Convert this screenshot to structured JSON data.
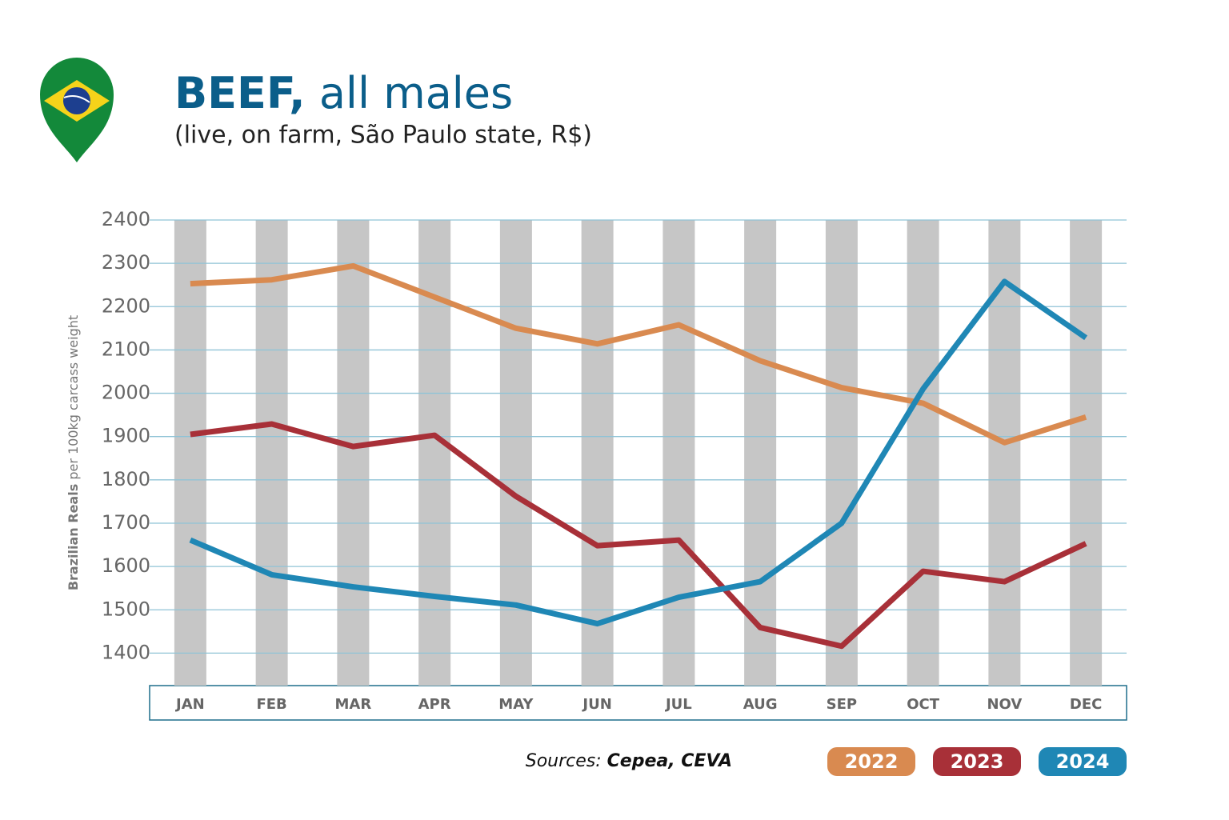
{
  "chart_data": {
    "type": "line",
    "title_emphasis": "BEEF,",
    "title": "all males",
    "subtitle": "(live, on farm, São Paulo state, R$)",
    "ylabel_emphasis": "Brazilian Reals",
    "ylabel": "per 100kg carcass weight",
    "source_label": "Sources:",
    "source": "Cepea, CEVA",
    "categories": [
      "JAN",
      "FEB",
      "MAR",
      "APR",
      "MAY",
      "JUN",
      "JUL",
      "AUG",
      "SEP",
      "OCT",
      "NOV",
      "DEC"
    ],
    "series": [
      {
        "name": "2022",
        "color": "#d98a50",
        "values": [
          2253,
          2262,
          2294,
          2222,
          2150,
          2114,
          2158,
          2075,
          2013,
          1977,
          1886,
          1945
        ]
      },
      {
        "name": "2023",
        "color": "#a83038",
        "values": [
          1905,
          1929,
          1877,
          1903,
          1762,
          1648,
          1661,
          1459,
          1416,
          1589,
          1565,
          1653
        ]
      },
      {
        "name": "2024",
        "color": "#1f87b5",
        "values": [
          1661,
          1581,
          1553,
          1531,
          1511,
          1468,
          1529,
          1565,
          1700,
          2010,
          2258,
          2128
        ]
      }
    ],
    "ylim": [
      1325,
      2400
    ],
    "yticks": [
      1400,
      1500,
      1600,
      1700,
      1800,
      1900,
      2000,
      2100,
      2200,
      2300,
      2400
    ],
    "grid": true,
    "legend": "bottom-right"
  }
}
